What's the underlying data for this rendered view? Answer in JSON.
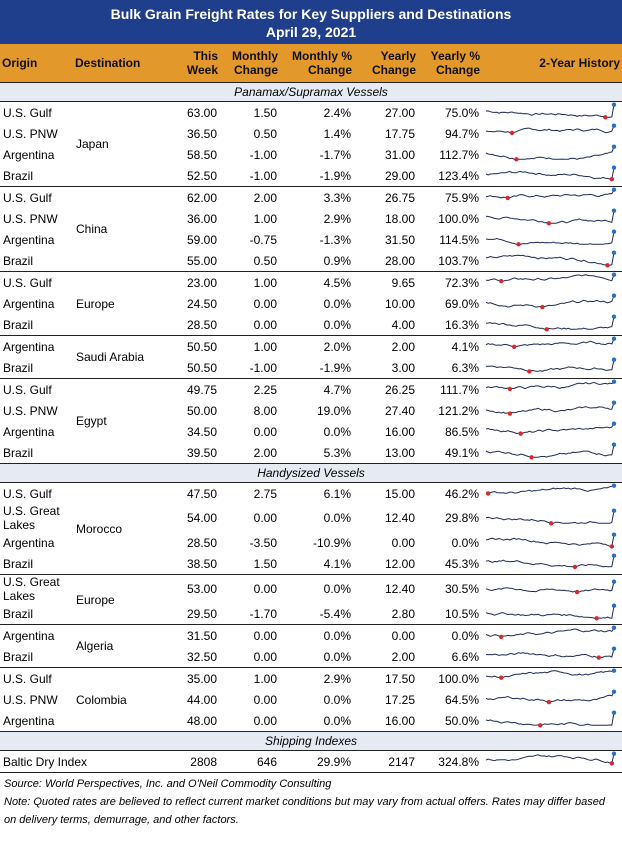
{
  "title": "Bulk Grain Freight Rates for Key Suppliers and Destinations",
  "date": "April 29, 2021",
  "columns": [
    "Origin",
    "Destination",
    "This Week",
    "Monthly Change",
    "Monthly % Change",
    "Yearly Change",
    "Yearly % Change",
    "2-Year History"
  ],
  "sections": [
    {
      "title": "Panamax/Supramax Vessels",
      "groups": [
        {
          "destination": "Japan",
          "rows": [
            [
              "U.S. Gulf",
              "63.00",
              "1.50",
              "2.4%",
              "27.00",
              "75.0%"
            ],
            [
              "U.S. PNW",
              "36.50",
              "0.50",
              "1.4%",
              "17.75",
              "94.7%"
            ],
            [
              "Argentina",
              "58.50",
              "-1.00",
              "-1.7%",
              "31.00",
              "112.7%"
            ],
            [
              "Brazil",
              "52.50",
              "-1.00",
              "-1.9%",
              "29.00",
              "123.4%"
            ]
          ]
        },
        {
          "destination": "China",
          "rows": [
            [
              "U.S. Gulf",
              "62.00",
              "2.00",
              "3.3%",
              "26.75",
              "75.9%"
            ],
            [
              "U.S. PNW",
              "36.00",
              "1.00",
              "2.9%",
              "18.00",
              "100.0%"
            ],
            [
              "Argentina",
              "59.00",
              "-0.75",
              "-1.3%",
              "31.50",
              "114.5%"
            ],
            [
              "Brazil",
              "55.00",
              "0.50",
              "0.9%",
              "28.00",
              "103.7%"
            ]
          ]
        },
        {
          "destination": "Europe",
          "rows": [
            [
              "U.S. Gulf",
              "23.00",
              "1.00",
              "4.5%",
              "9.65",
              "72.3%"
            ],
            [
              "Argentina",
              "24.50",
              "0.00",
              "0.0%",
              "10.00",
              "69.0%"
            ],
            [
              "Brazil",
              "28.50",
              "0.00",
              "0.0%",
              "4.00",
              "16.3%"
            ]
          ]
        },
        {
          "destination": "Saudi Arabia",
          "rows": [
            [
              "Argentina",
              "50.50",
              "1.00",
              "2.0%",
              "2.00",
              "4.1%"
            ],
            [
              "Brazil",
              "50.50",
              "-1.00",
              "-1.9%",
              "3.00",
              "6.3%"
            ]
          ]
        },
        {
          "destination": "Egypt",
          "rows": [
            [
              "U.S. Gulf",
              "49.75",
              "2.25",
              "4.7%",
              "26.25",
              "111.7%"
            ],
            [
              "U.S. PNW",
              "50.00",
              "8.00",
              "19.0%",
              "27.40",
              "121.2%"
            ],
            [
              "Argentina",
              "34.50",
              "0.00",
              "0.0%",
              "16.00",
              "86.5%"
            ],
            [
              "Brazil",
              "39.50",
              "2.00",
              "5.3%",
              "13.00",
              "49.1%"
            ]
          ]
        }
      ]
    },
    {
      "title": "Handysized Vessels",
      "groups": [
        {
          "destination": "Morocco",
          "rows": [
            [
              "U.S. Gulf",
              "47.50",
              "2.75",
              "6.1%",
              "15.00",
              "46.2%"
            ],
            [
              "U.S. Great Lakes",
              "54.00",
              "0.00",
              "0.0%",
              "12.40",
              "29.8%"
            ],
            [
              "Argentina",
              "28.50",
              "-3.50",
              "-10.9%",
              "0.00",
              "0.0%"
            ],
            [
              "Brazil",
              "38.50",
              "1.50",
              "4.1%",
              "12.00",
              "45.3%"
            ]
          ]
        },
        {
          "destination": "Europe",
          "rows": [
            [
              "U.S. Great Lakes",
              "53.00",
              "0.00",
              "0.0%",
              "12.40",
              "30.5%"
            ],
            [
              "Brazil",
              "29.50",
              "-1.70",
              "-5.4%",
              "2.80",
              "10.5%"
            ]
          ]
        },
        {
          "destination": "Algeria",
          "rows": [
            [
              "Argentina",
              "31.50",
              "0.00",
              "0.0%",
              "0.00",
              "0.0%"
            ],
            [
              "Brazil",
              "32.50",
              "0.00",
              "0.0%",
              "2.00",
              "6.6%"
            ]
          ]
        },
        {
          "destination": "Colombia",
          "rows": [
            [
              "U.S. Gulf",
              "35.00",
              "1.00",
              "2.9%",
              "17.50",
              "100.0%"
            ],
            [
              "U.S. PNW",
              "44.00",
              "0.00",
              "0.0%",
              "17.25",
              "64.5%"
            ],
            [
              "Argentina",
              "48.00",
              "0.00",
              "0.0%",
              "16.00",
              "50.0%"
            ]
          ]
        }
      ]
    },
    {
      "title": "Shipping Indexes",
      "groups": [
        {
          "rows": [
            [
              "Baltic Dry Index",
              "2808",
              "646",
              "29.9%",
              "2147",
              "324.8%"
            ]
          ]
        }
      ]
    }
  ],
  "source": "Source: World Perspectives, Inc. and O'Neil Commodity Consulting",
  "note": "Note: Quoted rates are believed to reflect current market conditions but may vary from actual offers. Rates may differ based on delivery terms, demurrage, and other factors."
}
